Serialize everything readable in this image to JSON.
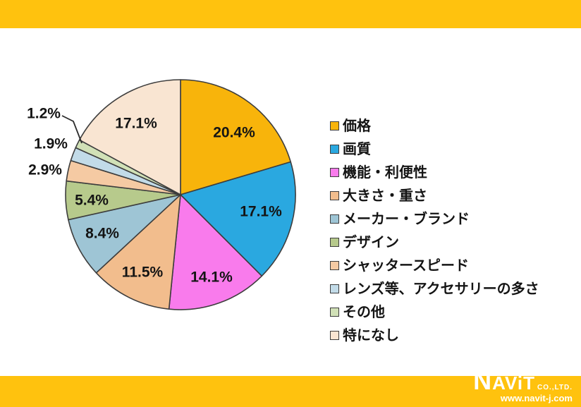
{
  "page": {
    "background": "#FFFFFF",
    "banner_color": "#FFC20E"
  },
  "chart_data": {
    "type": "pie",
    "title": "",
    "unit": "%",
    "direction": "clockwise",
    "start_angle_deg": 0,
    "legend_position": "right",
    "outline_color": "#3d3d3d",
    "slices": [
      {
        "label": "価格",
        "value": 20.4,
        "pct_label": "20.4%",
        "color": "#F8B40B",
        "label_placement": "inside"
      },
      {
        "label": "画質",
        "value": 17.1,
        "pct_label": "17.1%",
        "color": "#2AA8E0",
        "label_placement": "inside"
      },
      {
        "label": "機能・利便性",
        "value": 14.1,
        "pct_label": "14.1%",
        "color": "#F97BEC",
        "label_placement": "inside"
      },
      {
        "label": "大きさ・重さ",
        "value": 11.5,
        "pct_label": "11.5%",
        "color": "#F2BD8D",
        "label_placement": "inside"
      },
      {
        "label": "メーカー・ブランド",
        "value": 8.4,
        "pct_label": "8.4%",
        "color": "#9EC5D5",
        "label_placement": "inside"
      },
      {
        "label": "デザイン",
        "value": 5.4,
        "pct_label": "5.4%",
        "color": "#B7CA8C",
        "label_placement": "inside"
      },
      {
        "label": "シャッタースピード",
        "value": 2.9,
        "pct_label": "2.9%",
        "color": "#F5CAA3",
        "label_placement": "outside"
      },
      {
        "label": "レンズ等、アクセサリーの多さ",
        "value": 1.9,
        "pct_label": "1.9%",
        "color": "#C2DBE8",
        "label_placement": "outside"
      },
      {
        "label": "その他",
        "value": 1.2,
        "pct_label": "1.2%",
        "color": "#D1E1B7",
        "label_placement": "outside",
        "has_leader_line": true
      },
      {
        "label": "特になし",
        "value": 17.1,
        "pct_label": "17.1%",
        "color": "#F9E5D2",
        "label_placement": "inside"
      }
    ]
  },
  "footer": {
    "logo_name": "NAViT",
    "logo_suffix": "CO.,LTD.",
    "logo_url": "www.navit-j.com"
  }
}
